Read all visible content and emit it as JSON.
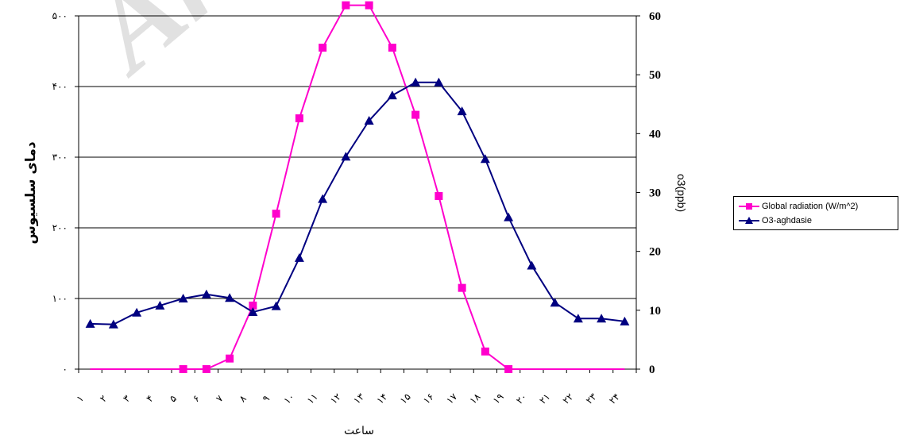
{
  "chart_data": {
    "type": "line",
    "categories": [
      "۱",
      "۲",
      "۳",
      "۴",
      "۵",
      "۶",
      "۷",
      "۸",
      "۹",
      "۱۰",
      "۱۱",
      "۱۲",
      "۱۳",
      "۱۴",
      "۱۵",
      "۱۶",
      "۱۷",
      "۱۸",
      "۱۹",
      "۲۰",
      "۲۱",
      "۲۲",
      "۲۳",
      "۲۴"
    ],
    "xlabel": "ساعت",
    "ylabel_left": "دمای سلسیوس",
    "ylabel_right": "o3(ppb)",
    "ylim_left": [
      0,
      500
    ],
    "ylim_right": [
      0,
      60
    ],
    "left_ticks": [
      {
        "value": 0,
        "label": "۰"
      },
      {
        "value": 100,
        "label": "۱۰۰"
      },
      {
        "value": 200,
        "label": "۲۰۰"
      },
      {
        "value": 300,
        "label": "۳۰۰"
      },
      {
        "value": 400,
        "label": "۴۰۰"
      },
      {
        "value": 500,
        "label": "۵۰۰"
      }
    ],
    "right_ticks": [
      0,
      10,
      20,
      30,
      40,
      50,
      60
    ],
    "grid": true,
    "legend_position": "right",
    "series": [
      {
        "name": "Global radiation (W/m^2)",
        "axis": "left",
        "color": "#ff00cc",
        "marker": "square",
        "values": [
          0,
          0,
          0,
          0,
          0,
          0,
          15,
          90,
          220,
          355,
          455,
          515,
          515,
          455,
          360,
          245,
          115,
          25,
          0,
          0,
          0,
          0,
          0,
          0
        ],
        "markers": [
          false,
          false,
          false,
          false,
          true,
          true,
          true,
          true,
          true,
          true,
          true,
          true,
          true,
          true,
          true,
          true,
          true,
          true,
          true,
          false,
          false,
          false,
          false,
          false
        ]
      },
      {
        "name": "O3-aghdasie",
        "axis": "right",
        "color": "#000080",
        "marker": "triangle",
        "values": [
          7.7,
          7.6,
          9.6,
          10.8,
          12.0,
          12.7,
          12.1,
          9.7,
          10.7,
          18.9,
          28.9,
          36.1,
          42.2,
          46.5,
          48.7,
          48.7,
          43.8,
          35.7,
          25.8,
          17.6,
          11.3,
          8.6,
          8.6,
          8.1
        ]
      }
    ]
  },
  "legend": {
    "items": [
      {
        "label": "Global radiation (W/m^2)",
        "color": "#ff00cc"
      },
      {
        "label": "O3-aghdasie",
        "color": "#000080"
      }
    ]
  },
  "watermark": "Archi"
}
